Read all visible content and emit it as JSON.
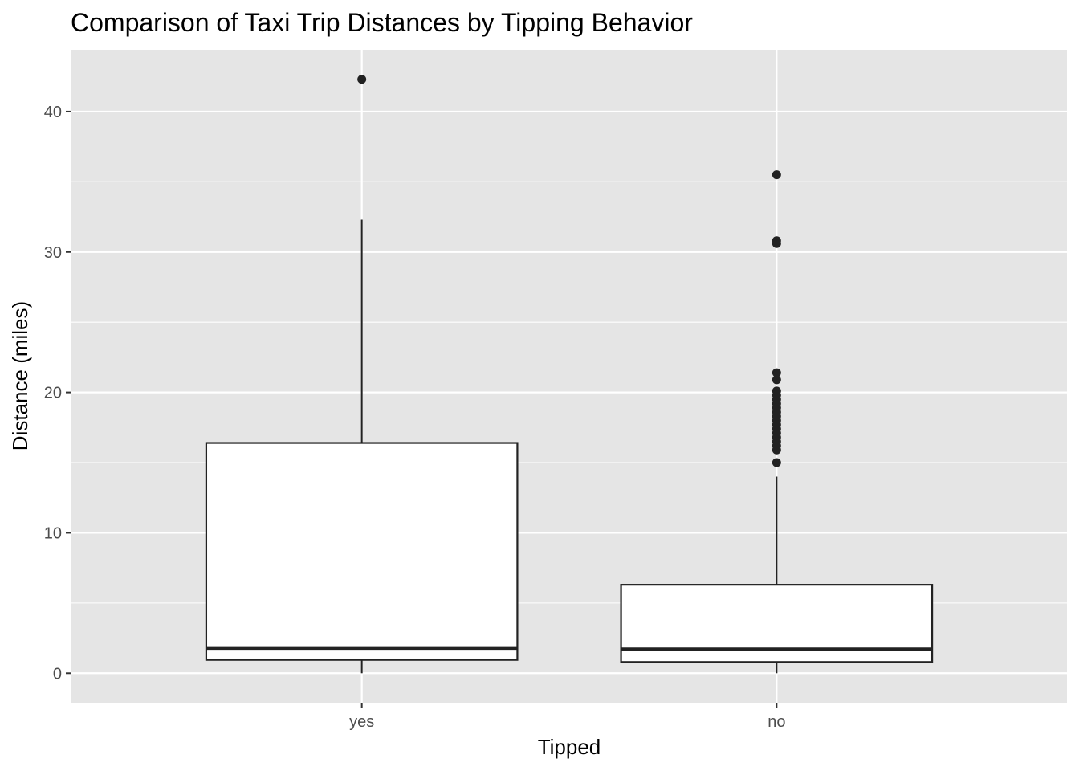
{
  "chart_data": {
    "type": "boxplot",
    "title": "Comparison of Taxi Trip Distances by Tipping Behavior",
    "xlabel": "Tipped",
    "ylabel": "Distance (miles)",
    "categories": [
      "yes",
      "no"
    ],
    "ylim": [
      -2.1,
      44.4
    ],
    "yticks": [
      0,
      10,
      20,
      30,
      40
    ],
    "grid": true,
    "colors": {
      "panel": "#e5e5e5",
      "grid": "#ffffff",
      "box_fill": "#ffffff",
      "box_line": "#222222",
      "tick_text": "#4d4d4d"
    },
    "boxes": [
      {
        "category": "yes",
        "whisker_low": 0.0,
        "q1": 0.95,
        "median": 1.8,
        "q3": 16.4,
        "whisker_high": 32.3,
        "outliers": [
          42.3
        ]
      },
      {
        "category": "no",
        "whisker_low": 0.0,
        "q1": 0.8,
        "median": 1.7,
        "q3": 6.3,
        "whisker_high": 14.0,
        "outliers": [
          15.0,
          15.9,
          16.2,
          16.5,
          16.8,
          17.1,
          17.4,
          17.7,
          18.0,
          18.3,
          18.6,
          18.9,
          19.2,
          19.5,
          19.8,
          20.1,
          20.9,
          21.4,
          30.6,
          30.8,
          35.5
        ]
      }
    ]
  }
}
